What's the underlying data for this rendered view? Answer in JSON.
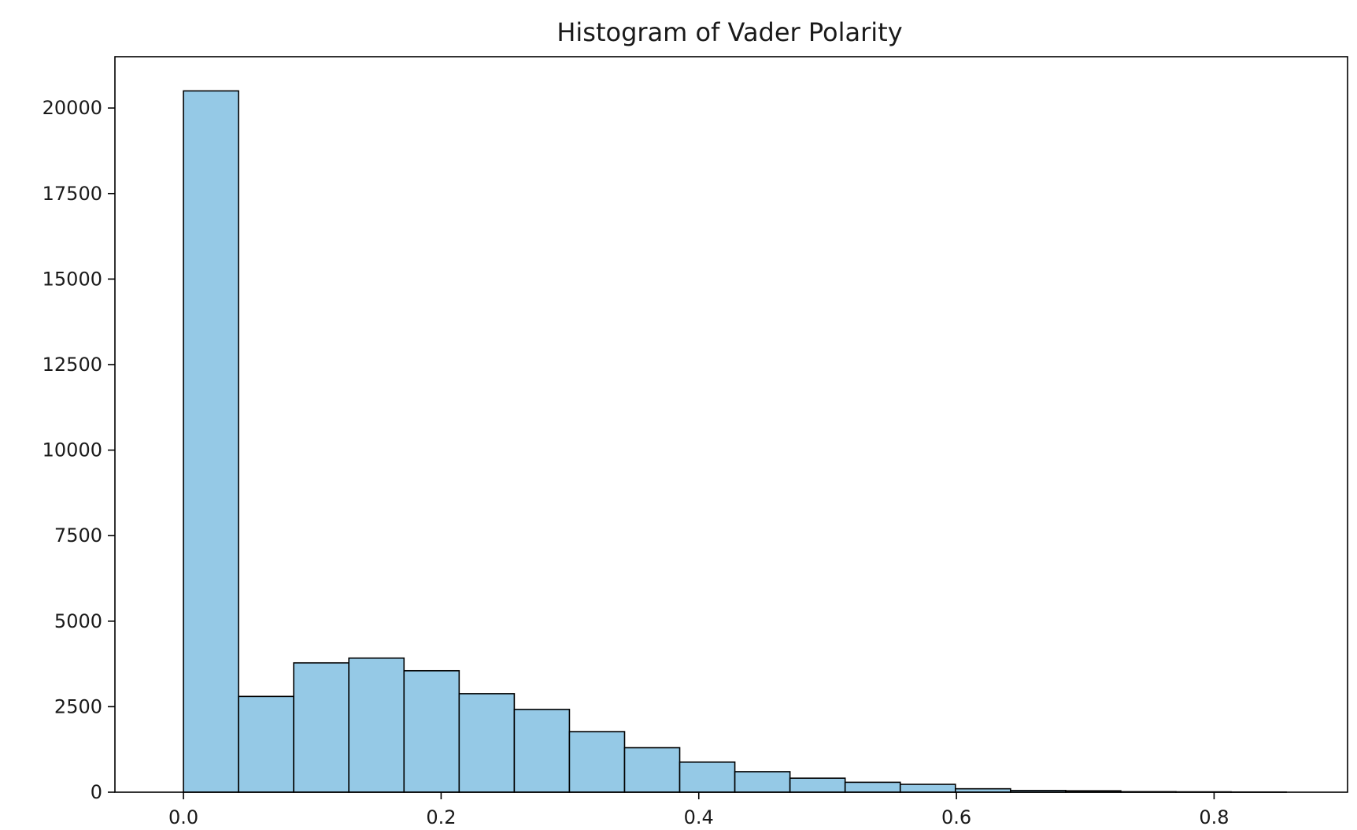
{
  "chart_data": {
    "type": "bar",
    "title": "Histogram of Vader Polarity",
    "xlabel": "",
    "ylabel": "",
    "x_range": [
      -0.0532,
      0.9036
    ],
    "ylim": [
      0,
      21500
    ],
    "xticks": [
      0.0,
      0.2,
      0.4,
      0.6,
      0.8
    ],
    "xtick_labels": [
      "0.0",
      "0.2",
      "0.4",
      "0.6",
      "0.8"
    ],
    "yticks": [
      0,
      2500,
      5000,
      7500,
      10000,
      12500,
      15000,
      17500,
      20000
    ],
    "ytick_labels": [
      "0",
      "2500",
      "5000",
      "7500",
      "10000",
      "12500",
      "15000",
      "17500",
      "20000"
    ],
    "bin_edges": [
      0.0,
      0.0428,
      0.0856,
      0.1284,
      0.1712,
      0.214,
      0.2568,
      0.2996,
      0.3424,
      0.3852,
      0.428,
      0.4708,
      0.5136,
      0.5564,
      0.5992,
      0.642,
      0.6848,
      0.7276,
      0.7704,
      0.8132,
      0.856
    ],
    "values": [
      20500,
      2800,
      3780,
      3920,
      3550,
      2880,
      2420,
      1770,
      1300,
      880,
      600,
      410,
      290,
      230,
      100,
      50,
      40,
      15,
      10,
      5
    ],
    "bar_color": "#95c9e6",
    "edge_color": "#000000",
    "grid": false,
    "legend": "none"
  }
}
